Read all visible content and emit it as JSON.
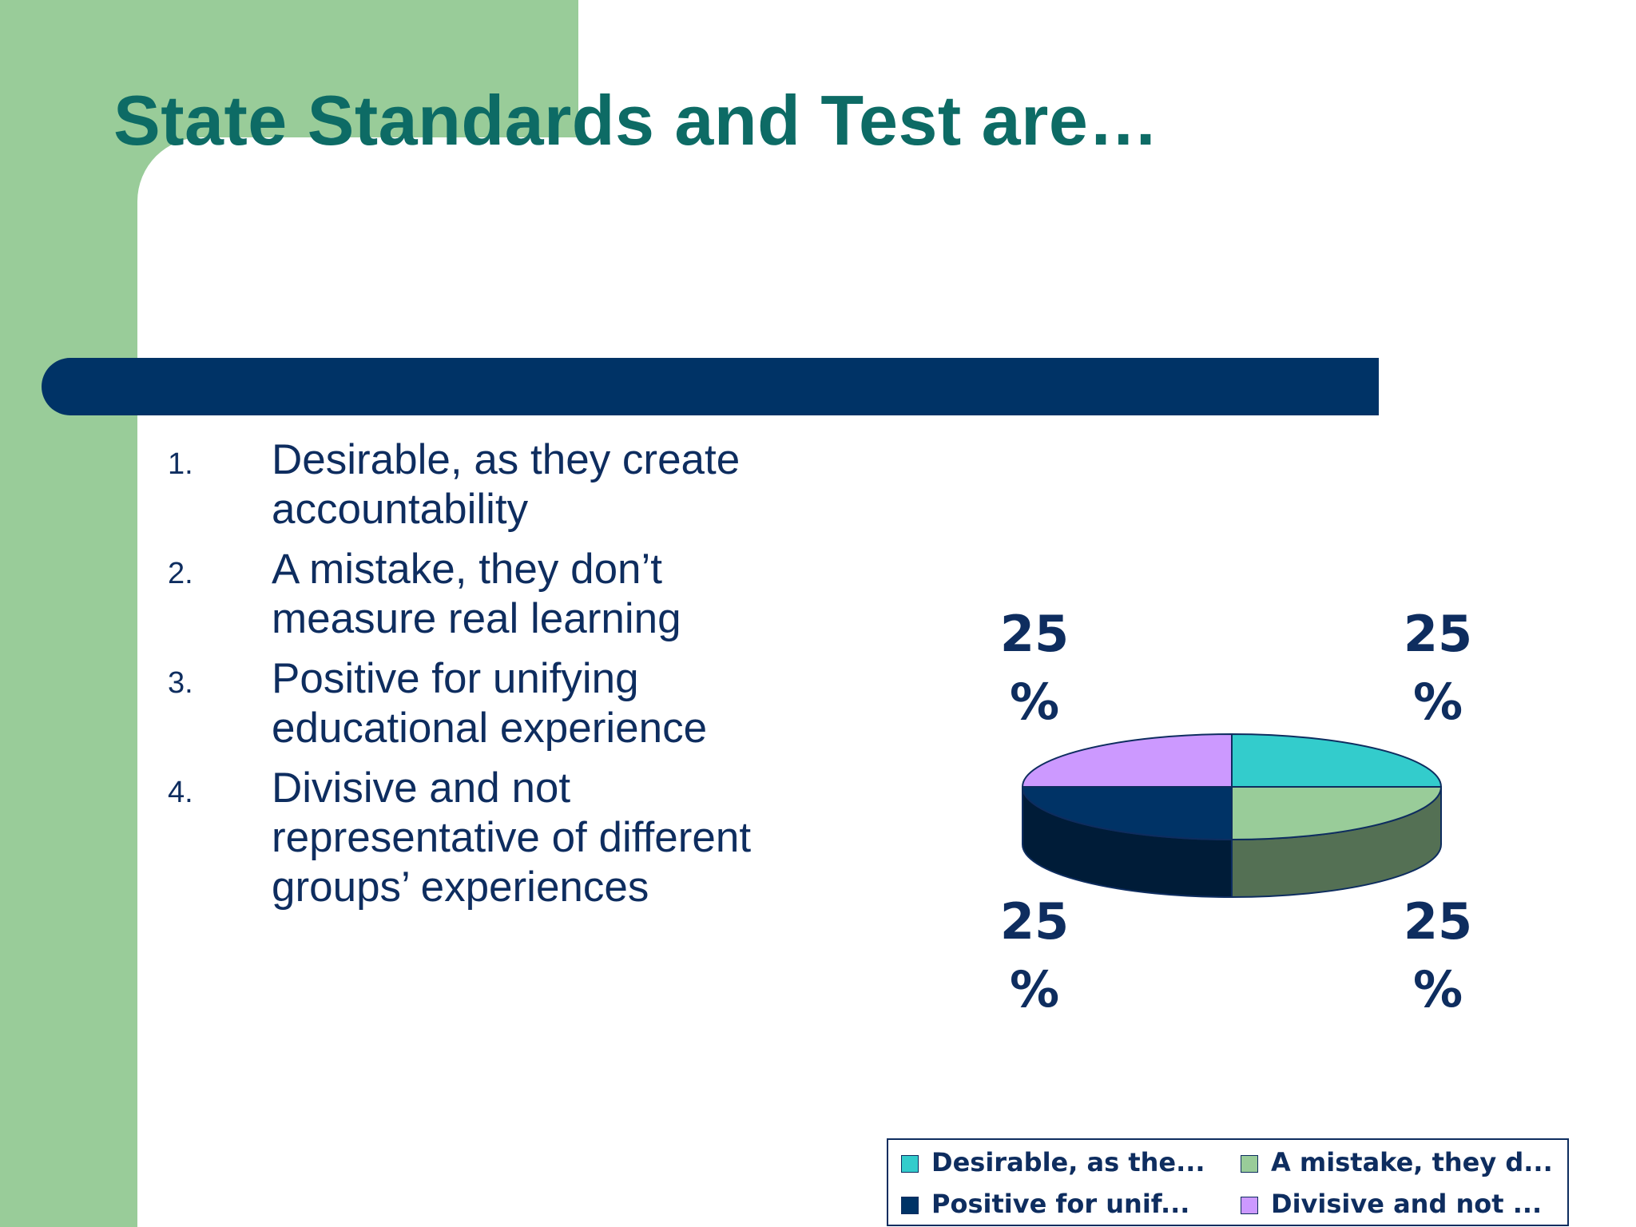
{
  "slide": {
    "title": "State Standards and Test are…",
    "options": [
      {
        "number": "1.",
        "lines": [
          "Desirable, as they create",
          "accountability"
        ]
      },
      {
        "number": "2.",
        "lines": [
          "A mistake, they don’t",
          "measure real learning"
        ]
      },
      {
        "number": "3.",
        "lines": [
          "Positive for unifying",
          "educational experience"
        ]
      },
      {
        "number": "4.",
        "lines": [
          "Divisive and not",
          "representative of different",
          "groups’ experiences"
        ]
      }
    ]
  },
  "colors": {
    "title": "#0d6b65",
    "band": "#99cc99",
    "bar": "#003366",
    "text": "#0e2d5f"
  },
  "chart_data": {
    "type": "pie",
    "style": "3d",
    "values": [
      25,
      25,
      25,
      25
    ],
    "data_labels": [
      {
        "line1": "25",
        "line2": "%"
      },
      {
        "line1": "25",
        "line2": "%"
      },
      {
        "line1": "25",
        "line2": "%"
      },
      {
        "line1": "25",
        "line2": "%"
      }
    ],
    "legend": {
      "placement": "bottom-right",
      "entries": [
        {
          "label": "Desirable, as the...",
          "color": "#33cccc"
        },
        {
          "label": "A mistake, they d...",
          "color": "#99cc99"
        },
        {
          "label": "Positive for unif...",
          "color": "#003366"
        },
        {
          "label": "Divisive and not ...",
          "color": "#cc99ff"
        }
      ]
    }
  }
}
